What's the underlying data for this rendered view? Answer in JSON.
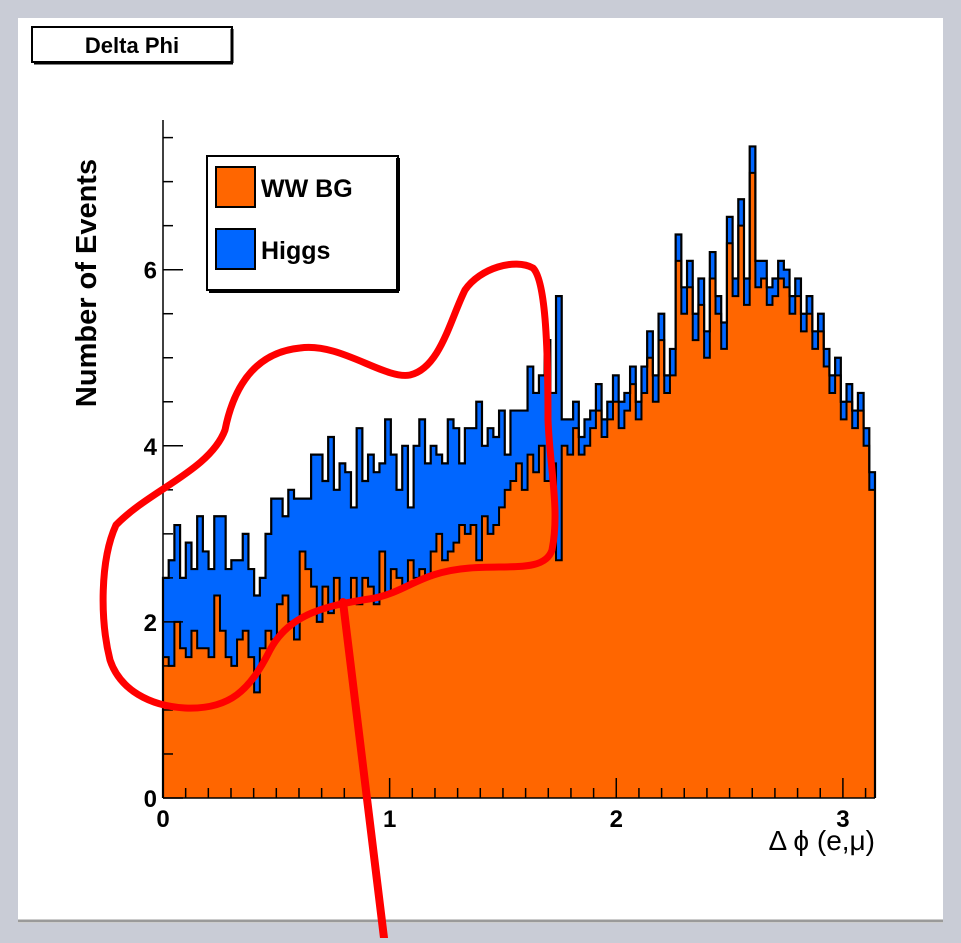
{
  "colors": {
    "ww_bg": "#ff6600",
    "higgs": "#0066ff",
    "outline": "#000000",
    "annotation": "#ff0000",
    "canvas": "#ffffff"
  },
  "chart_data": {
    "type": "bar",
    "title": "Delta Phi",
    "xlabel": "Δ ϕ (e,μ)",
    "ylabel": "Number of Events",
    "xlim": [
      0,
      3.1416
    ],
    "ylim": [
      0,
      7.7
    ],
    "x_ticks": [
      "0",
      "1",
      "2",
      "3"
    ],
    "x_tick_values": [
      0,
      1,
      2,
      3
    ],
    "y_ticks": [
      "0",
      "2",
      "4",
      "6"
    ],
    "y_tick_values": [
      0,
      2,
      4,
      6
    ],
    "stacked": true,
    "bins": 125,
    "legend_position": "top-left",
    "series": [
      {
        "name": "WW BG",
        "values": [
          1.6,
          1.5,
          2.0,
          1.7,
          1.6,
          1.9,
          1.7,
          1.7,
          1.6,
          2.3,
          1.9,
          1.6,
          1.5,
          1.8,
          1.9,
          1.6,
          1.2,
          1.7,
          1.9,
          1.8,
          2.2,
          2.3,
          2.0,
          1.8,
          2.8,
          2.6,
          2.4,
          2.0,
          2.4,
          2.1,
          2.5,
          2.2,
          2.2,
          2.5,
          2.2,
          2.5,
          2.4,
          2.2,
          2.8,
          2.3,
          2.6,
          2.5,
          2.4,
          2.7,
          2.5,
          2.6,
          2.5,
          2.8,
          3.0,
          2.7,
          2.8,
          2.9,
          3.1,
          3.0,
          3.1,
          2.7,
          3.2,
          3.0,
          3.1,
          3.3,
          3.5,
          3.6,
          3.8,
          3.5,
          3.9,
          3.7,
          4.0,
          3.6,
          3.8,
          2.7,
          4.0,
          3.9,
          4.2,
          3.9,
          4.0,
          4.2,
          4.4,
          4.1,
          4.3,
          4.5,
          4.2,
          4.4,
          4.7,
          4.3,
          4.6,
          5.0,
          4.5,
          5.2,
          4.6,
          4.8,
          6.1,
          5.5,
          5.8,
          5.2,
          5.6,
          5.0,
          5.9,
          5.5,
          5.1,
          6.3,
          5.7,
          6.5,
          5.6,
          7.1,
          5.8,
          5.9,
          5.6,
          5.7,
          5.9,
          5.8,
          5.5,
          5.7,
          5.3,
          5.5,
          5.1,
          5.3,
          4.9,
          4.6,
          4.8,
          4.3,
          4.5,
          4.2,
          4.4,
          4.0,
          3.5
        ],
        "color_key": "ww_bg"
      },
      {
        "name": "Higgs",
        "values": [
          0.9,
          1.2,
          1.1,
          0.8,
          1.3,
          0.7,
          1.5,
          1.1,
          1.0,
          0.9,
          1.3,
          1.0,
          1.2,
          0.9,
          1.1,
          1.0,
          1.1,
          0.8,
          1.1,
          1.6,
          1.2,
          0.9,
          1.5,
          1.6,
          0.6,
          0.8,
          1.5,
          1.9,
          1.2,
          2.0,
          1.0,
          1.6,
          1.5,
          0.8,
          2.0,
          1.1,
          1.5,
          1.5,
          1.0,
          2.0,
          1.3,
          1.0,
          1.6,
          0.6,
          1.5,
          1.7,
          1.3,
          1.2,
          0.9,
          1.1,
          1.5,
          1.3,
          0.7,
          1.2,
          1.1,
          1.8,
          0.8,
          1.2,
          1.0,
          1.1,
          0.4,
          0.8,
          0.6,
          0.9,
          1.0,
          0.9,
          0.8,
          1.6,
          0.8,
          3.0,
          0.3,
          0.4,
          0.3,
          0.2,
          0.3,
          0.2,
          0.3,
          0.2,
          0.2,
          0.3,
          0.3,
          0.2,
          0.2,
          0.2,
          0.3,
          0.3,
          0.3,
          0.3,
          0.2,
          0.3,
          0.3,
          0.3,
          0.3,
          0.3,
          0.3,
          0.3,
          0.3,
          0.2,
          0.3,
          0.3,
          0.2,
          0.3,
          0.3,
          0.3,
          0.3,
          0.2,
          0.2,
          0.2,
          0.2,
          0.2,
          0.2,
          0.2,
          0.2,
          0.2,
          0.2,
          0.2,
          0.2,
          0.2,
          0.2,
          0.2,
          0.2,
          0.2,
          0.2,
          0.2,
          0.2
        ],
        "color_key": "higgs"
      }
    ]
  }
}
